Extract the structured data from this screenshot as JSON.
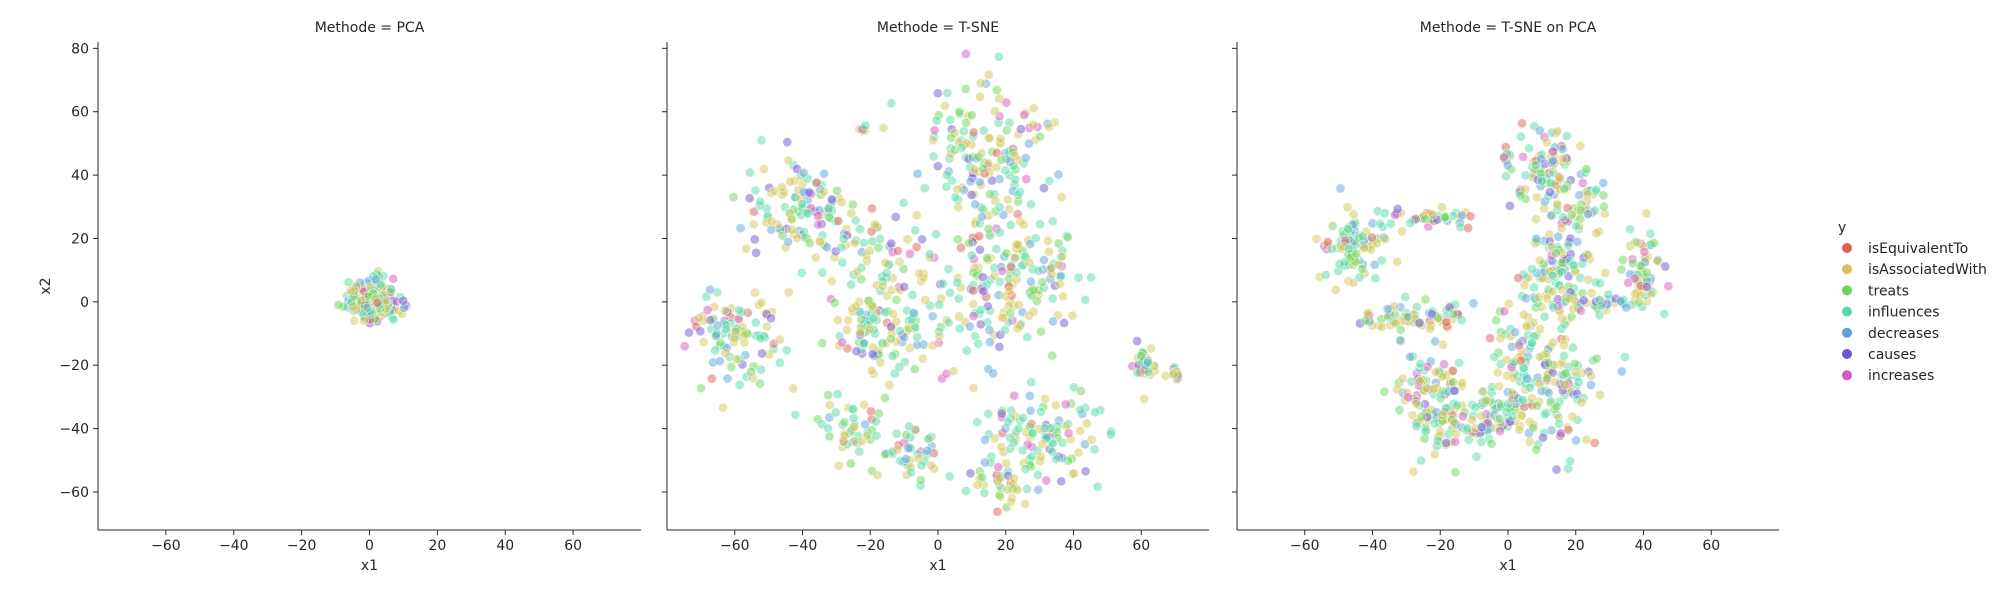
{
  "chart_data": {
    "type": "scatter",
    "legend": {
      "title": "y",
      "placement": "right",
      "entries": [
        {
          "label": "isEquivalentTo",
          "color": "#db5f57"
        },
        {
          "label": "isAssociatedWith",
          "color": "#d3c557"
        },
        {
          "label": "treats",
          "color": "#6bd559"
        },
        {
          "label": "influences",
          "color": "#57d9a7"
        },
        {
          "label": "decreases",
          "color": "#5ba3db"
        },
        {
          "label": "causes",
          "color": "#7155d5"
        },
        {
          "label": "increases",
          "color": "#d557c2"
        }
      ]
    },
    "shared_axes": {
      "xlim": [
        -80,
        80
      ],
      "ylim": [
        -72,
        82
      ],
      "xticks": [
        -60,
        -40,
        -20,
        0,
        20,
        40,
        60
      ],
      "yticks": [
        -60,
        -40,
        -20,
        0,
        20,
        40,
        60,
        80
      ],
      "xlabel": "x1",
      "ylabel": "x2",
      "grid": false
    },
    "panels": [
      {
        "title": "Methode = PCA",
        "clusters": [
          {
            "cx": 1,
            "cy": 1,
            "sx": 3.5,
            "sy": 3,
            "n": 260
          }
        ]
      },
      {
        "title": "Methode = T-SNE",
        "clusters": [
          {
            "cx": 15,
            "cy": 45,
            "sx": 10,
            "sy": 12,
            "n": 160
          },
          {
            "cx": -40,
            "cy": 30,
            "sx": 8,
            "sy": 7,
            "n": 110
          },
          {
            "cx": -60,
            "cy": -13,
            "sx": 7,
            "sy": 7,
            "n": 100
          },
          {
            "cx": -17,
            "cy": -10,
            "sx": 8,
            "sy": 7,
            "n": 90
          },
          {
            "cx": 23,
            "cy": 10,
            "sx": 10,
            "sy": 10,
            "n": 120
          },
          {
            "cx": 33,
            "cy": -42,
            "sx": 9,
            "sy": 8,
            "n": 110
          },
          {
            "cx": -22,
            "cy": 15,
            "sx": 8,
            "sy": 8,
            "n": 60
          },
          {
            "cx": -25,
            "cy": -40,
            "sx": 7,
            "sy": 5,
            "n": 50
          },
          {
            "cx": -8,
            "cy": -50,
            "sx": 5,
            "sy": 4,
            "n": 40
          },
          {
            "cx": 20,
            "cy": -58,
            "sx": 5,
            "sy": 4,
            "n": 35
          },
          {
            "cx": 5,
            "cy": 0,
            "sx": 12,
            "sy": 10,
            "n": 80
          },
          {
            "cx": 61,
            "cy": -19,
            "sx": 2,
            "sy": 2.5,
            "n": 40
          },
          {
            "cx": 70,
            "cy": -23,
            "sx": 1.2,
            "sy": 1.2,
            "n": 12
          },
          {
            "cx": -22,
            "cy": 55,
            "sx": 1,
            "sy": 1,
            "n": 6
          }
        ]
      },
      {
        "title": "Methode = T-SNE on PCA",
        "clusters": [
          {
            "cx": -45,
            "cy": 17,
            "sx": 5,
            "sy": 5,
            "n": 90
          },
          {
            "cx": -22,
            "cy": 27,
            "sx": 7,
            "sy": 1.5,
            "n": 40
          },
          {
            "cx": -28,
            "cy": -5,
            "sx": 9,
            "sy": 2.5,
            "n": 70
          },
          {
            "cx": -22,
            "cy": -30,
            "sx": 5,
            "sy": 9,
            "n": 120
          },
          {
            "cx": -5,
            "cy": -38,
            "sx": 7,
            "sy": 4,
            "n": 80
          },
          {
            "cx": 2,
            "cy": -22,
            "sx": 4,
            "sy": 9,
            "n": 60
          },
          {
            "cx": 15,
            "cy": -25,
            "sx": 6,
            "sy": 12,
            "n": 120
          },
          {
            "cx": 15,
            "cy": 10,
            "sx": 6,
            "sy": 8,
            "n": 110
          },
          {
            "cx": 12,
            "cy": 42,
            "sx": 5,
            "sy": 6,
            "n": 80
          },
          {
            "cx": 22,
            "cy": 32,
            "sx": 3,
            "sy": 6,
            "n": 40
          },
          {
            "cx": 28,
            "cy": 0,
            "sx": 6,
            "sy": 1.5,
            "n": 40
          },
          {
            "cx": 40,
            "cy": 10,
            "sx": 3,
            "sy": 7,
            "n": 60
          },
          {
            "cx": 0,
            "cy": 45,
            "sx": 1.2,
            "sy": 2,
            "n": 12
          }
        ]
      }
    ]
  }
}
